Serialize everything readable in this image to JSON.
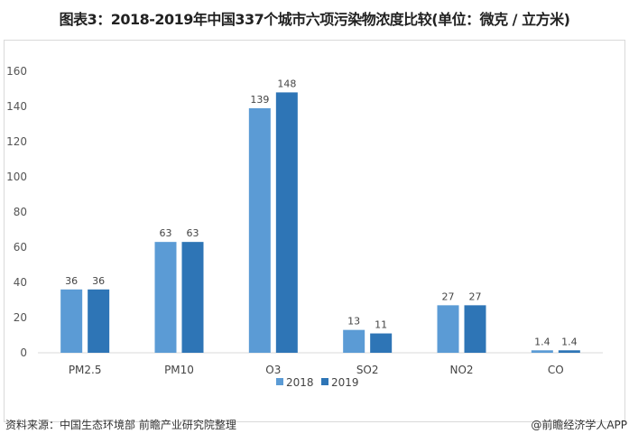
{
  "title": "图表3：2018-2019年中国337个城市六项污染物浓度比较(单位：微克 / 立方米)",
  "footer": {
    "source": "资料来源：中国生态环境部 前瞻产业研究院整理",
    "credit": "@前瞻经济学人APP"
  },
  "chart_data": {
    "type": "bar",
    "title": "图表3：2018-2019年中国337个城市六项污染物浓度比较(单位：微克 / 立方米)",
    "categories": [
      "PM2.5",
      "PM10",
      "O3",
      "SO2",
      "NO2",
      "CO"
    ],
    "series": [
      {
        "name": "2018",
        "values": [
          36,
          63,
          139,
          13,
          27,
          1.4
        ],
        "color": "#5b9bd5"
      },
      {
        "name": "2019",
        "values": [
          36,
          63,
          148,
          11,
          27,
          1.4
        ],
        "color": "#2e75b6"
      }
    ],
    "ylim": [
      0,
      160
    ],
    "yticks": [
      0,
      20,
      40,
      60,
      80,
      100,
      120,
      140,
      160
    ],
    "grid": false,
    "legend": "bottom",
    "data_labels": true
  }
}
